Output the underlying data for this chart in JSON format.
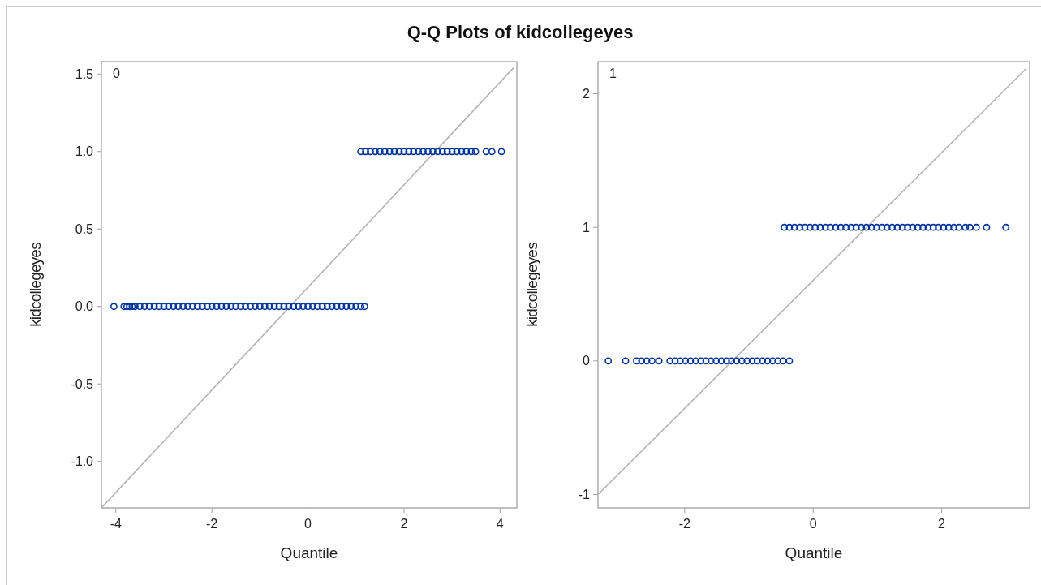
{
  "chart_data": [
    {
      "type": "scatter",
      "title": "Q-Q Plots of kidcollegeyes",
      "xlabel": "Quantile",
      "ylabel": "kidcollegeyes",
      "annotations": [
        "0"
      ],
      "marker": "circle",
      "xlim": [
        -4.3,
        4.35
      ],
      "xticks": [
        -4,
        -2,
        0,
        2,
        4
      ],
      "ylim": [
        -1.3,
        1.58
      ],
      "yticks": [
        {
          "value": -1,
          "label": "-1.0"
        },
        -0.5,
        {
          "value": 0,
          "label": "0.0"
        },
        0.5,
        {
          "value": 1,
          "label": "1.0"
        },
        1.5
      ],
      "series": [
        {
          "type": "line",
          "marker": "none",
          "color": "#b4b4b4",
          "x": [
            -4.3,
            4.28
          ],
          "values": [
            -1.3,
            1.54
          ]
        },
        {
          "type": "scatter",
          "color": "#003399",
          "x": [
            -4.04,
            -3.83,
            -3.77,
            -3.71,
            -3.66,
            -3.6,
            -3.5,
            -3.4,
            -3.3,
            -3.2,
            -3.1,
            -3.0,
            -2.9,
            -2.8,
            -2.7,
            -2.6,
            -2.5,
            -2.4,
            -2.3,
            -2.2,
            -2.1,
            -2.0,
            -1.9,
            -1.8,
            -1.7,
            -1.6,
            -1.5,
            -1.4,
            -1.3,
            -1.2,
            -1.1,
            -1.0,
            -0.9,
            -0.8,
            -0.7,
            -0.6,
            -0.5,
            -0.4,
            -0.3,
            -0.2,
            -0.1,
            0.0,
            0.1,
            0.2,
            0.3,
            0.4,
            0.5,
            0.6,
            0.7,
            0.8,
            0.9,
            1.0,
            1.1,
            1.18
          ],
          "values": [
            0,
            0,
            0,
            0,
            0,
            0,
            0,
            0,
            0,
            0,
            0,
            0,
            0,
            0,
            0,
            0,
            0,
            0,
            0,
            0,
            0,
            0,
            0,
            0,
            0,
            0,
            0,
            0,
            0,
            0,
            0,
            0,
            0,
            0,
            0,
            0,
            0,
            0,
            0,
            0,
            0,
            0,
            0,
            0,
            0,
            0,
            0,
            0,
            0,
            0,
            0,
            0,
            0,
            0
          ]
        },
        {
          "type": "scatter",
          "color": "#003399",
          "x": [
            1.1,
            1.2,
            1.3,
            1.4,
            1.5,
            1.6,
            1.7,
            1.8,
            1.9,
            2.0,
            2.1,
            2.2,
            2.3,
            2.4,
            2.5,
            2.6,
            2.7,
            2.8,
            2.9,
            3.0,
            3.1,
            3.2,
            3.3,
            3.4,
            3.49,
            3.71,
            3.83,
            4.03
          ],
          "values": [
            1,
            1,
            1,
            1,
            1,
            1,
            1,
            1,
            1,
            1,
            1,
            1,
            1,
            1,
            1,
            1,
            1,
            1,
            1,
            1,
            1,
            1,
            1,
            1,
            1,
            1,
            1,
            1
          ]
        }
      ]
    },
    {
      "type": "scatter",
      "xlabel": "Quantile",
      "ylabel": "kidcollegeyes",
      "annotations": [
        "1"
      ],
      "marker": "circle",
      "xlim": [
        -3.35,
        3.37
      ],
      "xticks": [
        -2,
        0,
        2
      ],
      "ylim": [
        -1.1,
        2.24
      ],
      "yticks": [
        -1,
        0,
        1,
        2
      ],
      "series": [
        {
          "type": "line",
          "marker": "none",
          "color": "#b4b4b4",
          "x": [
            -3.35,
            3.32
          ],
          "values": [
            -1.0,
            2.19
          ]
        },
        {
          "type": "scatter",
          "color": "#003399",
          "x": [
            -3.19,
            -2.92,
            -2.75,
            -2.67,
            -2.59,
            -2.51,
            -2.4,
            -2.23,
            -2.15,
            -2.07,
            -1.99,
            -1.91,
            -1.83,
            -1.75,
            -1.67,
            -1.59,
            -1.51,
            -1.43,
            -1.35,
            -1.27,
            -1.19,
            -1.11,
            -1.03,
            -0.95,
            -0.87,
            -0.79,
            -0.71,
            -0.63,
            -0.55,
            -0.47,
            -0.37
          ],
          "values": [
            0,
            0,
            0,
            0,
            0,
            0,
            0,
            0,
            0,
            0,
            0,
            0,
            0,
            0,
            0,
            0,
            0,
            0,
            0,
            0,
            0,
            0,
            0,
            0,
            0,
            0,
            0,
            0,
            0,
            0,
            0
          ]
        },
        {
          "type": "scatter",
          "color": "#003399",
          "x": [
            -0.45,
            -0.37,
            -0.29,
            -0.21,
            -0.13,
            -0.05,
            0.03,
            0.11,
            0.19,
            0.27,
            0.35,
            0.43,
            0.51,
            0.59,
            0.67,
            0.75,
            0.83,
            0.91,
            0.99,
            1.07,
            1.15,
            1.23,
            1.31,
            1.39,
            1.47,
            1.55,
            1.63,
            1.71,
            1.79,
            1.87,
            1.95,
            2.03,
            2.11,
            2.19,
            2.27,
            2.37,
            2.44,
            2.54,
            2.7,
            3.0
          ],
          "values": [
            1,
            1,
            1,
            1,
            1,
            1,
            1,
            1,
            1,
            1,
            1,
            1,
            1,
            1,
            1,
            1,
            1,
            1,
            1,
            1,
            1,
            1,
            1,
            1,
            1,
            1,
            1,
            1,
            1,
            1,
            1,
            1,
            1,
            1,
            1,
            1,
            1,
            1,
            1,
            1
          ]
        }
      ]
    }
  ]
}
